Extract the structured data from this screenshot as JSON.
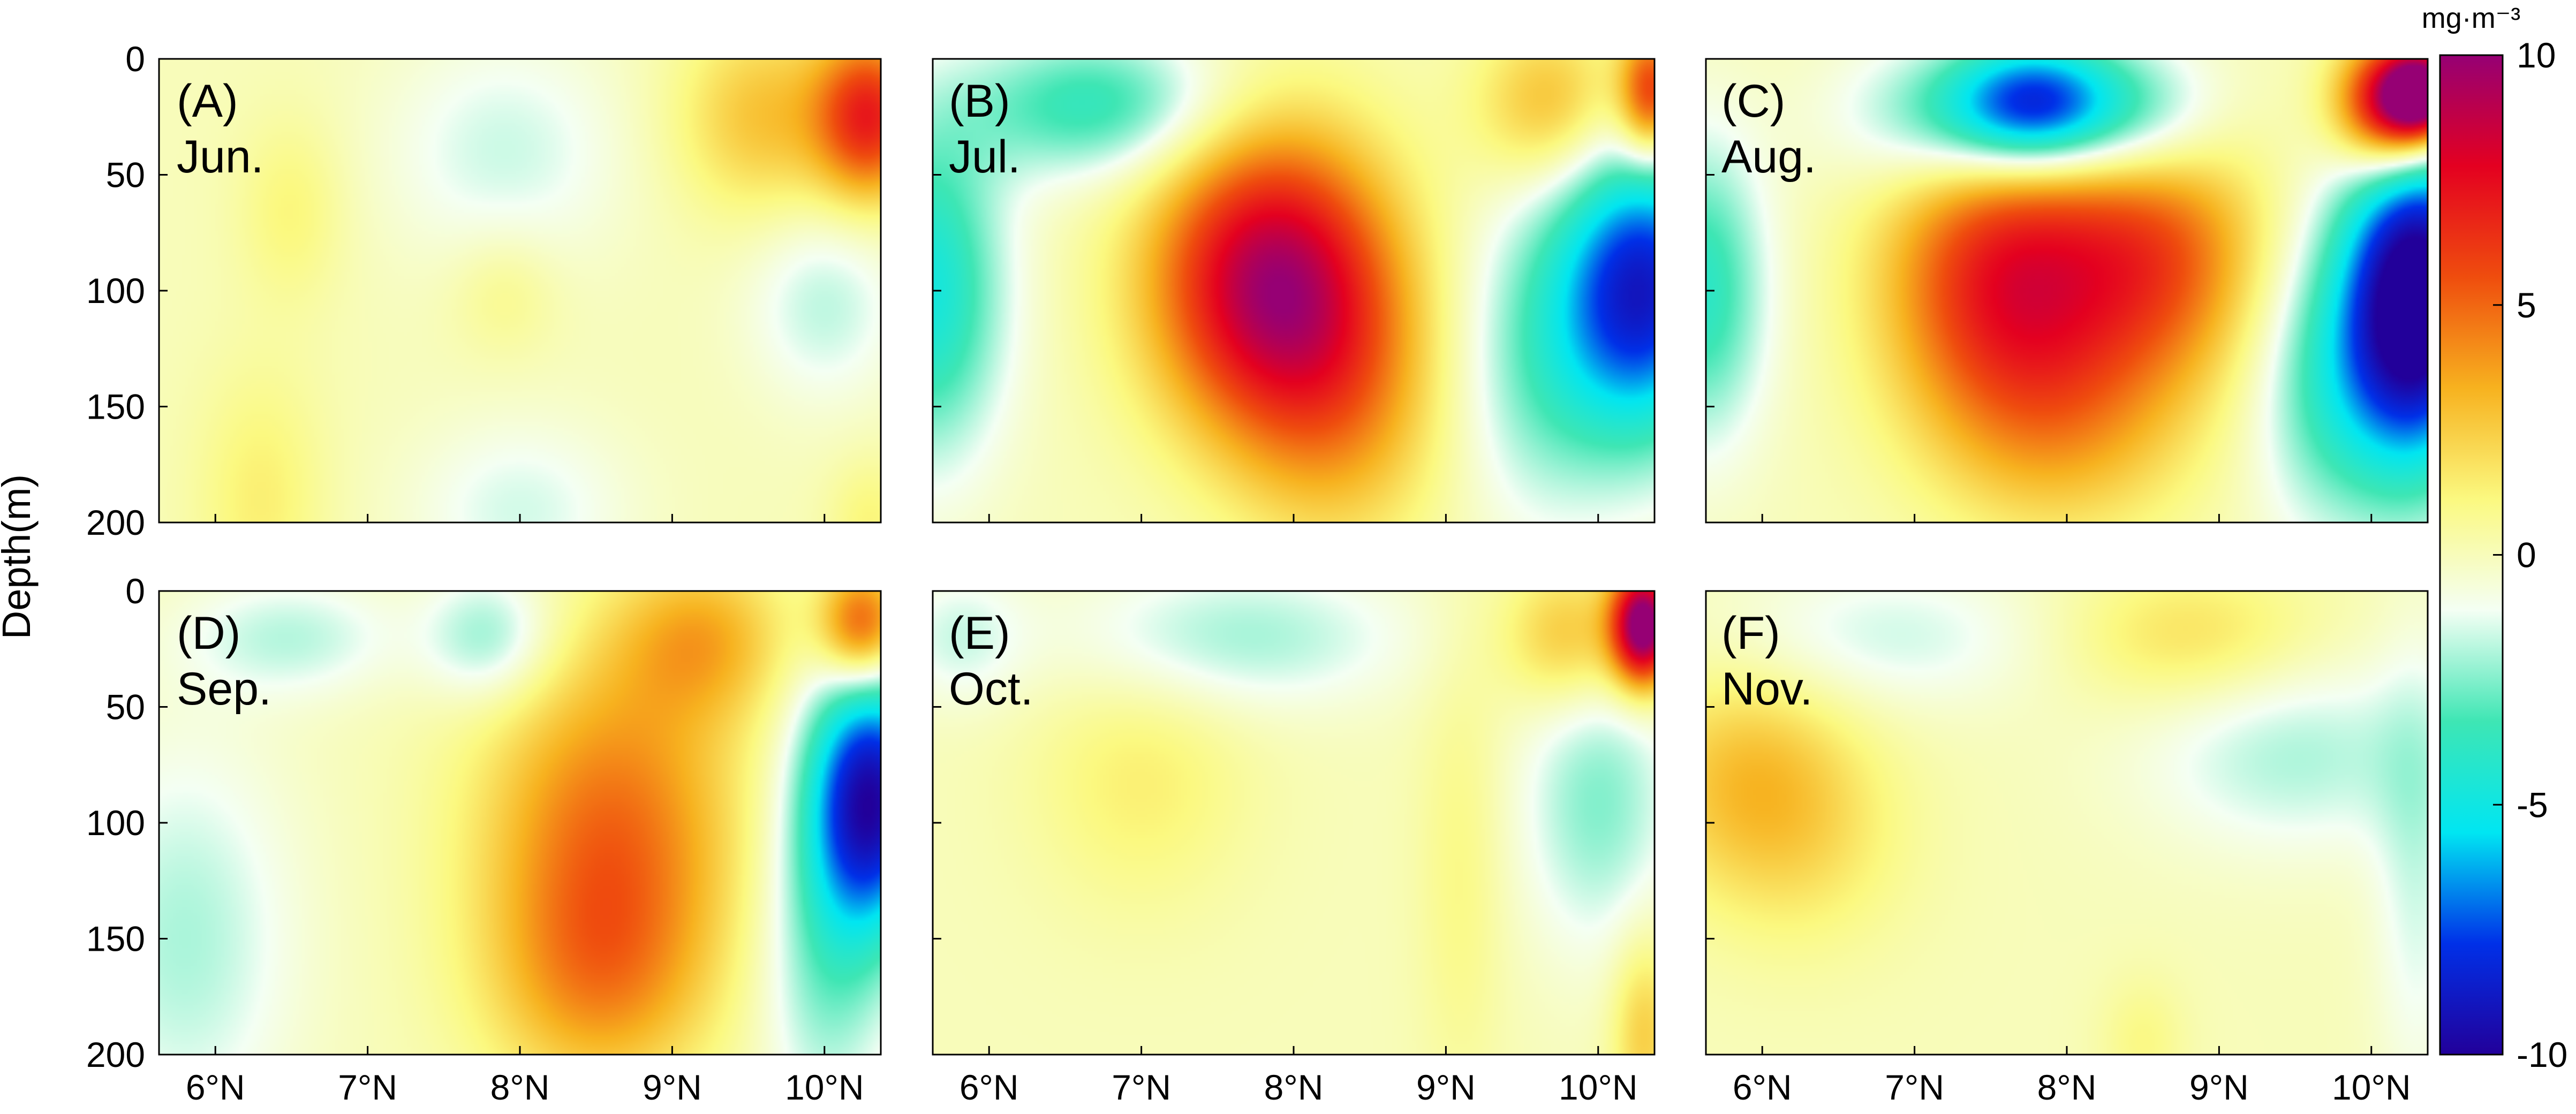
{
  "chart_data": {
    "type": "heatmap",
    "ylabel": "Depth(m)",
    "x_ticks": [
      "6°N",
      "7°N",
      "8°N",
      "9°N",
      "10°N"
    ],
    "x_tick_values": [
      6,
      7,
      8,
      9,
      10
    ],
    "xlim": [
      5.63,
      10.37
    ],
    "y_ticks": [
      "0",
      "50",
      "100",
      "150",
      "200"
    ],
    "y_tick_values": [
      0,
      50,
      100,
      150,
      200
    ],
    "ylim": [
      0,
      200
    ],
    "y_reversed": true,
    "colorbar": {
      "unit": "mg·m⁻³",
      "ticks": [
        "10",
        "5",
        "0",
        "-5",
        "-10"
      ],
      "tick_values": [
        10,
        5,
        0,
        -5,
        -10
      ],
      "range": [
        -10,
        10
      ],
      "colormap": [
        "#22009a",
        "#0030e8",
        "#00e6f2",
        "#3ee6b4",
        "#f4fff4",
        "#fbf980",
        "#f7b21f",
        "#ef4d0e",
        "#e40020",
        "#960074"
      ]
    },
    "panels": [
      {
        "label": "(A)",
        "month": "Jun.",
        "blobs": [
          {
            "lat": 6.5,
            "depth": 65,
            "value": 1.2,
            "sl": 0.25,
            "sd": 28
          },
          {
            "lat": 6.3,
            "depth": 190,
            "value": 1.4,
            "sl": 0.3,
            "sd": 40
          },
          {
            "lat": 7.9,
            "depth": 40,
            "value": -1.6,
            "sl": 0.55,
            "sd": 35
          },
          {
            "lat": 7.9,
            "depth": 100,
            "value": 1.0,
            "sl": 0.25,
            "sd": 20
          },
          {
            "lat": 8.0,
            "depth": 195,
            "value": -1.5,
            "sl": 0.5,
            "sd": 28
          },
          {
            "lat": 9.6,
            "depth": 25,
            "value": 2.8,
            "sl": 0.4,
            "sd": 30
          },
          {
            "lat": 10.3,
            "depth": 25,
            "value": 6.5,
            "sl": 0.25,
            "sd": 25
          },
          {
            "lat": 10.0,
            "depth": 105,
            "value": -1.8,
            "sl": 0.35,
            "sd": 30
          },
          {
            "lat": 10.3,
            "depth": 200,
            "value": 1.2,
            "sl": 0.2,
            "sd": 20
          }
        ]
      },
      {
        "label": "(B)",
        "month": "Jul.",
        "blobs": [
          {
            "lat": 6.7,
            "depth": 20,
            "value": -3.8,
            "sl": 0.6,
            "sd": 22
          },
          {
            "lat": 5.6,
            "depth": 100,
            "value": -4.8,
            "sl": 0.35,
            "sd": 50
          },
          {
            "lat": 7.85,
            "depth": 95,
            "value": 9.0,
            "sl": 0.55,
            "sd": 45
          },
          {
            "lat": 8.3,
            "depth": 150,
            "value": 3.0,
            "sl": 0.5,
            "sd": 45
          },
          {
            "lat": 9.7,
            "depth": 20,
            "value": 3.2,
            "sl": 0.35,
            "sd": 25
          },
          {
            "lat": 10.35,
            "depth": 15,
            "value": 6.5,
            "sl": 0.15,
            "sd": 20
          },
          {
            "lat": 10.3,
            "depth": 100,
            "value": -8.5,
            "sl": 0.4,
            "sd": 45
          },
          {
            "lat": 9.6,
            "depth": 130,
            "value": -2.5,
            "sl": 0.4,
            "sd": 50
          }
        ]
      },
      {
        "label": "(C)",
        "month": "Aug.",
        "blobs": [
          {
            "lat": 7.8,
            "depth": 20,
            "value": -8.0,
            "sl": 0.4,
            "sd": 20
          },
          {
            "lat": 7.2,
            "depth": 25,
            "value": -3.0,
            "sl": 0.5,
            "sd": 22
          },
          {
            "lat": 8.5,
            "depth": 25,
            "value": -3.0,
            "sl": 0.4,
            "sd": 22
          },
          {
            "lat": 5.6,
            "depth": 100,
            "value": -4.0,
            "sl": 0.3,
            "sd": 45
          },
          {
            "lat": 7.6,
            "depth": 95,
            "value": 7.0,
            "sl": 0.55,
            "sd": 45
          },
          {
            "lat": 8.6,
            "depth": 85,
            "value": 5.0,
            "sl": 0.5,
            "sd": 40
          },
          {
            "lat": 8.0,
            "depth": 160,
            "value": 2.5,
            "sl": 0.6,
            "sd": 35
          },
          {
            "lat": 10.1,
            "depth": 20,
            "value": 8.0,
            "sl": 0.25,
            "sd": 20
          },
          {
            "lat": 10.35,
            "depth": 15,
            "value": 10.5,
            "sl": 0.2,
            "sd": 15
          },
          {
            "lat": 10.3,
            "depth": 105,
            "value": -11.5,
            "sl": 0.35,
            "sd": 50
          },
          {
            "lat": 9.7,
            "depth": 140,
            "value": -3.0,
            "sl": 0.35,
            "sd": 45
          }
        ]
      },
      {
        "label": "(D)",
        "month": "Sep.",
        "blobs": [
          {
            "lat": 6.5,
            "depth": 20,
            "value": -1.8,
            "sl": 0.5,
            "sd": 18
          },
          {
            "lat": 7.8,
            "depth": 20,
            "value": -2.5,
            "sl": 0.3,
            "sd": 20
          },
          {
            "lat": 5.8,
            "depth": 150,
            "value": -2.0,
            "sl": 0.5,
            "sd": 60
          },
          {
            "lat": 8.6,
            "depth": 105,
            "value": 4.8,
            "sl": 0.6,
            "sd": 55
          },
          {
            "lat": 8.5,
            "depth": 170,
            "value": 2.5,
            "sl": 0.5,
            "sd": 35
          },
          {
            "lat": 9.2,
            "depth": 20,
            "value": 3.0,
            "sl": 0.4,
            "sd": 25
          },
          {
            "lat": 10.25,
            "depth": 15,
            "value": 6.0,
            "sl": 0.2,
            "sd": 18
          },
          {
            "lat": 10.3,
            "depth": 90,
            "value": -9.5,
            "sl": 0.3,
            "sd": 40
          },
          {
            "lat": 10.0,
            "depth": 160,
            "value": -2.5,
            "sl": 0.3,
            "sd": 50
          }
        ]
      },
      {
        "label": "(E)",
        "month": "Oct.",
        "blobs": [
          {
            "lat": 5.8,
            "depth": 20,
            "value": -1.5,
            "sl": 0.3,
            "sd": 20
          },
          {
            "lat": 7.6,
            "depth": 20,
            "value": -2.2,
            "sl": 0.8,
            "sd": 22
          },
          {
            "lat": 7.0,
            "depth": 80,
            "value": 1.4,
            "sl": 0.5,
            "sd": 40
          },
          {
            "lat": 9.1,
            "depth": 120,
            "value": 1.0,
            "sl": 0.2,
            "sd": 70
          },
          {
            "lat": 9.8,
            "depth": 20,
            "value": 3.0,
            "sl": 0.3,
            "sd": 22
          },
          {
            "lat": 10.3,
            "depth": 15,
            "value": 11.0,
            "sl": 0.15,
            "sd": 18
          },
          {
            "lat": 10.0,
            "depth": 90,
            "value": -2.5,
            "sl": 0.35,
            "sd": 45
          },
          {
            "lat": 10.3,
            "depth": 190,
            "value": 2.5,
            "sl": 0.15,
            "sd": 30
          }
        ]
      },
      {
        "label": "(F)",
        "month": "Nov.",
        "blobs": [
          {
            "lat": 6.8,
            "depth": 20,
            "value": -1.6,
            "sl": 0.8,
            "sd": 22
          },
          {
            "lat": 5.9,
            "depth": 80,
            "value": 2.6,
            "sl": 0.5,
            "sd": 35
          },
          {
            "lat": 6.3,
            "depth": 110,
            "value": 1.2,
            "sl": 0.5,
            "sd": 35
          },
          {
            "lat": 8.8,
            "depth": 20,
            "value": 2.0,
            "sl": 0.6,
            "sd": 22
          },
          {
            "lat": 9.5,
            "depth": 70,
            "value": -2.0,
            "sl": 0.7,
            "sd": 30
          },
          {
            "lat": 10.3,
            "depth": 120,
            "value": -1.5,
            "sl": 0.2,
            "sd": 70
          },
          {
            "lat": 8.5,
            "depth": 195,
            "value": 1.0,
            "sl": 0.2,
            "sd": 20
          }
        ]
      }
    ]
  }
}
